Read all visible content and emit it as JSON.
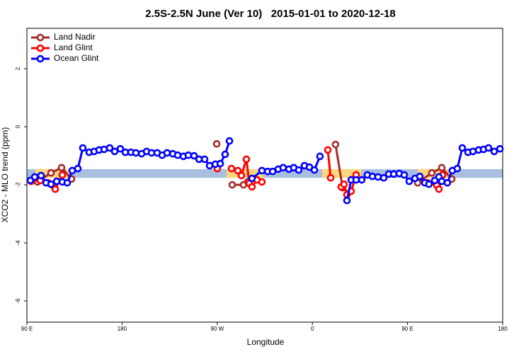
{
  "chart_data": {
    "type": "line",
    "title": "2.5S-2.5N June (Ver 10)   2015-01-01 to 2020-12-18",
    "xlabel": "Longitude",
    "ylabel": "XCO2 - MLO trend (ppm)",
    "xlim": [
      90,
      540
    ],
    "ylim": [
      -6.73,
      3.39
    ],
    "xticks": [
      {
        "value": 90,
        "label": "90 E"
      },
      180,
      {
        "value": 270,
        "label": "90 W"
      },
      {
        "value": 360,
        "label": "0"
      },
      {
        "value": 450,
        "label": "90 E"
      },
      {
        "value": 540,
        "label": "180"
      }
    ],
    "yticks": [
      2,
      0,
      -2,
      -4,
      -6
    ],
    "legend": "top-left",
    "reference_band": {
      "ylim": [
        -1.76,
        -1.46
      ],
      "color": "#a9bfe0"
    },
    "highlight_color": "#fbd77e",
    "highlight_ranges": [
      [
        98,
        131.5
      ],
      [
        278.8,
        313.6
      ],
      [
        369.2,
        406.1
      ],
      [
        459.6,
        493.1
      ]
    ],
    "series": [
      {
        "name": "Land Nadir",
        "color": "#a52a2a",
        "x": [
          100.0,
          112.8,
          122.8,
          132.2,
          null,
          269.5,
          null,
          284.2,
          294.9,
          298.9,
          null,
          381.9,
          388.6,
          null,
          459.6,
          473.0,
          482.4,
          491.8
        ],
        "values": [
          -1.9,
          -1.59,
          -1.41,
          -1.8,
          null,
          -0.59,
          null,
          -2.0,
          -2.0,
          -1.9,
          null,
          -0.61,
          -2.1,
          null,
          -1.93,
          -1.59,
          -1.41,
          -1.8
        ]
      },
      {
        "name": "Land Glint",
        "color": "#ff0000",
        "x": [
          94.0,
          102.7,
          110.1,
          114.8,
          116.8,
          123.5,
          null,
          270.1,
          null,
          283.5,
          289.5,
          292.9,
          297.6,
          300.3,
          302.9,
          307.6,
          312.3,
          null,
          374.6,
          377.3,
          null,
          387.3,
          390.0,
          392.7,
          396.7,
          401.4,
          null,
          469.0,
          477.7,
          479.7,
          483.1
        ],
        "values": [
          -1.88,
          -1.85,
          -1.93,
          -2.02,
          -2.15,
          -1.66,
          null,
          -1.44,
          null,
          -1.44,
          -1.51,
          -1.68,
          -1.12,
          -1.95,
          -2.07,
          -1.83,
          -1.9,
          null,
          -0.8,
          -1.76,
          null,
          -2.07,
          -1.98,
          -2.34,
          -2.22,
          -1.66,
          null,
          -1.93,
          -2.02,
          -2.15,
          -1.66
        ]
      },
      {
        "name": "Ocean Glint",
        "color": "#0000ff",
        "x": [
          93.3,
          97.4,
          103.4,
          108.1,
          112.8,
          118.2,
          123.5,
          128.2,
          132.9,
          138.2,
          142.9,
          148.9,
          153.6,
          158.3,
          163.0,
          168.3,
          173.0,
          178.4,
          183.1,
          188.4,
          193.1,
          198.5,
          203.2,
          207.9,
          213.2,
          217.9,
          222.6,
          228.0,
          232.6,
          238.0,
          242.7,
          248.1,
          252.8,
          258.1,
          262.8,
          268.2,
          272.9,
          277.5,
          281.6,
          null,
          302.9,
          312.3,
          317.7,
          322.4,
          327.7,
          332.4,
          337.8,
          342.4,
          347.1,
          352.5,
          357.2,
          361.9,
          367.2,
          null,
          392.7,
          396.7,
          401.4,
          406.7,
          412.1,
          416.8,
          422.1,
          427.5,
          432.2,
          436.9,
          442.2,
          446.9,
          451.6,
          457.0,
          461.6,
          466.3,
          470.3,
          475.7,
          479.7,
          482.4,
          487.7,
          492.4,
          497.1,
          501.8,
          507.2,
          511.9,
          517.2,
          521.9,
          526.6,
          532.0,
          537.4
        ],
        "values": [
          -1.85,
          -1.73,
          -1.68,
          -1.93,
          -1.98,
          -1.88,
          -1.9,
          -1.93,
          -1.51,
          -1.44,
          -0.73,
          -0.88,
          -0.85,
          -0.8,
          -0.78,
          -0.73,
          -0.85,
          -0.76,
          -0.88,
          -0.88,
          -0.9,
          -0.93,
          -0.85,
          -0.9,
          -0.9,
          -0.98,
          -0.9,
          -0.93,
          -0.98,
          -1.02,
          -0.98,
          -1.0,
          -1.12,
          -1.12,
          -1.34,
          -1.29,
          -1.27,
          -0.95,
          -0.49,
          null,
          -1.78,
          -1.51,
          -1.54,
          -1.54,
          -1.46,
          -1.41,
          -1.46,
          -1.41,
          -1.49,
          -1.34,
          -1.39,
          -1.49,
          -1.02,
          null,
          -2.54,
          -1.83,
          -1.83,
          -1.83,
          -1.66,
          -1.71,
          -1.73,
          -1.76,
          -1.63,
          -1.63,
          -1.61,
          -1.66,
          -1.88,
          -1.78,
          -1.71,
          -1.93,
          -1.98,
          -1.85,
          -1.73,
          -1.88,
          -1.93,
          -1.51,
          -1.44,
          -0.73,
          -0.88,
          -0.85,
          -0.8,
          -0.78,
          -0.73,
          -0.85,
          -0.76
        ]
      }
    ]
  }
}
